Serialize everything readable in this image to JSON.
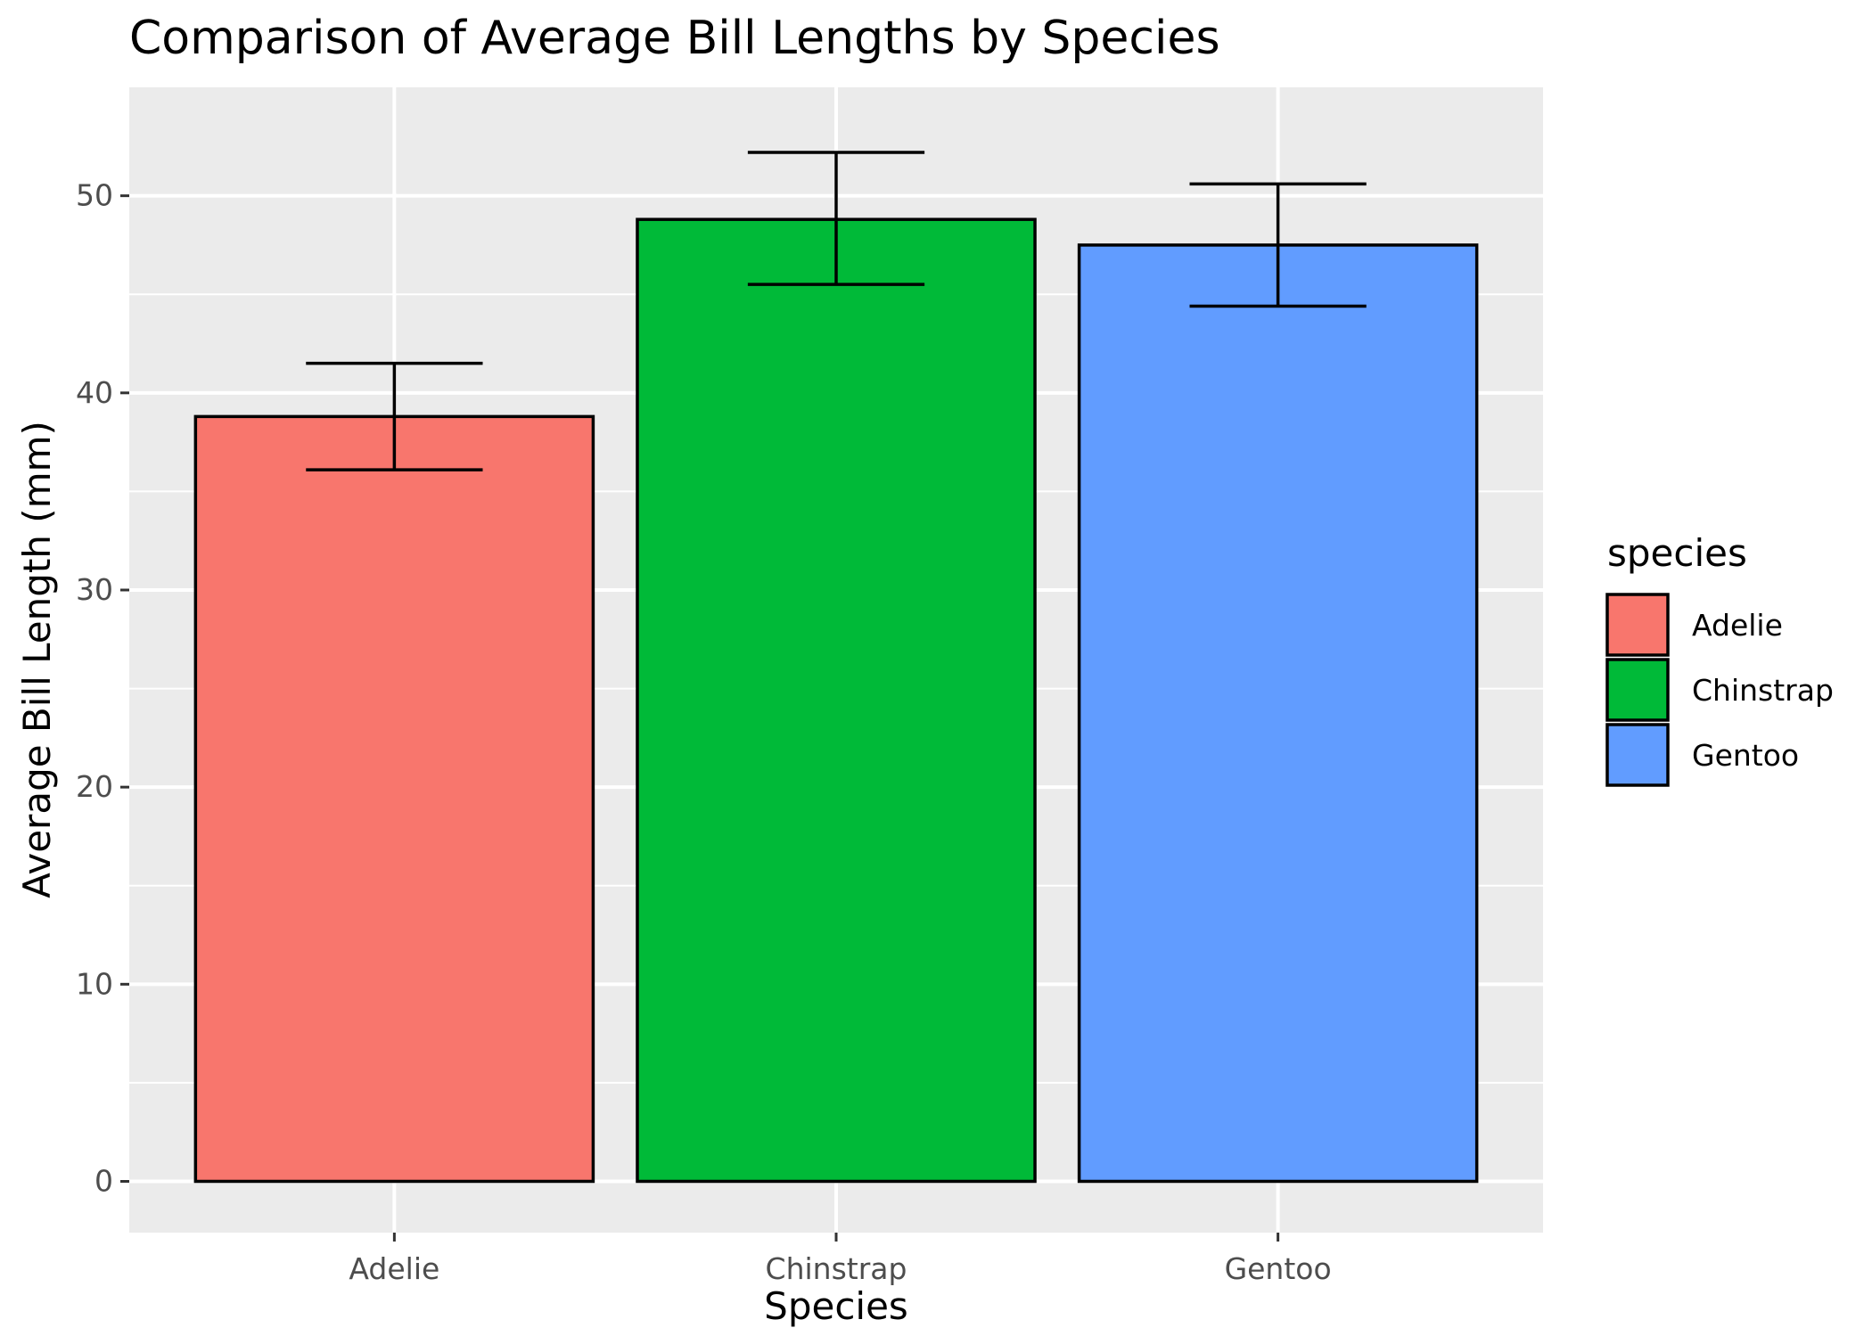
{
  "chart_data": {
    "type": "bar",
    "title": "Comparison of Average Bill Lengths by Species",
    "xlabel": "Species",
    "ylabel": "Average Bill Length (mm)",
    "categories": [
      "Adelie",
      "Chinstrap",
      "Gentoo"
    ],
    "values": [
      38.8,
      48.8,
      47.5
    ],
    "error_low": [
      36.1,
      45.5,
      44.4
    ],
    "error_high": [
      41.5,
      52.2,
      50.6
    ],
    "ylim": [
      -2.6,
      55.5
    ],
    "yticks": [
      0,
      10,
      20,
      30,
      40,
      50
    ],
    "grid": true,
    "legend": {
      "title": "species",
      "placement": "right",
      "entries": [
        "Adelie",
        "Chinstrap",
        "Gentoo"
      ]
    },
    "colors": {
      "Adelie": "#F8766D",
      "Chinstrap": "#00BA38",
      "Gentoo": "#619CFF",
      "panel": "#EBEBEB",
      "grid": "#FFFFFF",
      "outline": "#000000"
    }
  }
}
